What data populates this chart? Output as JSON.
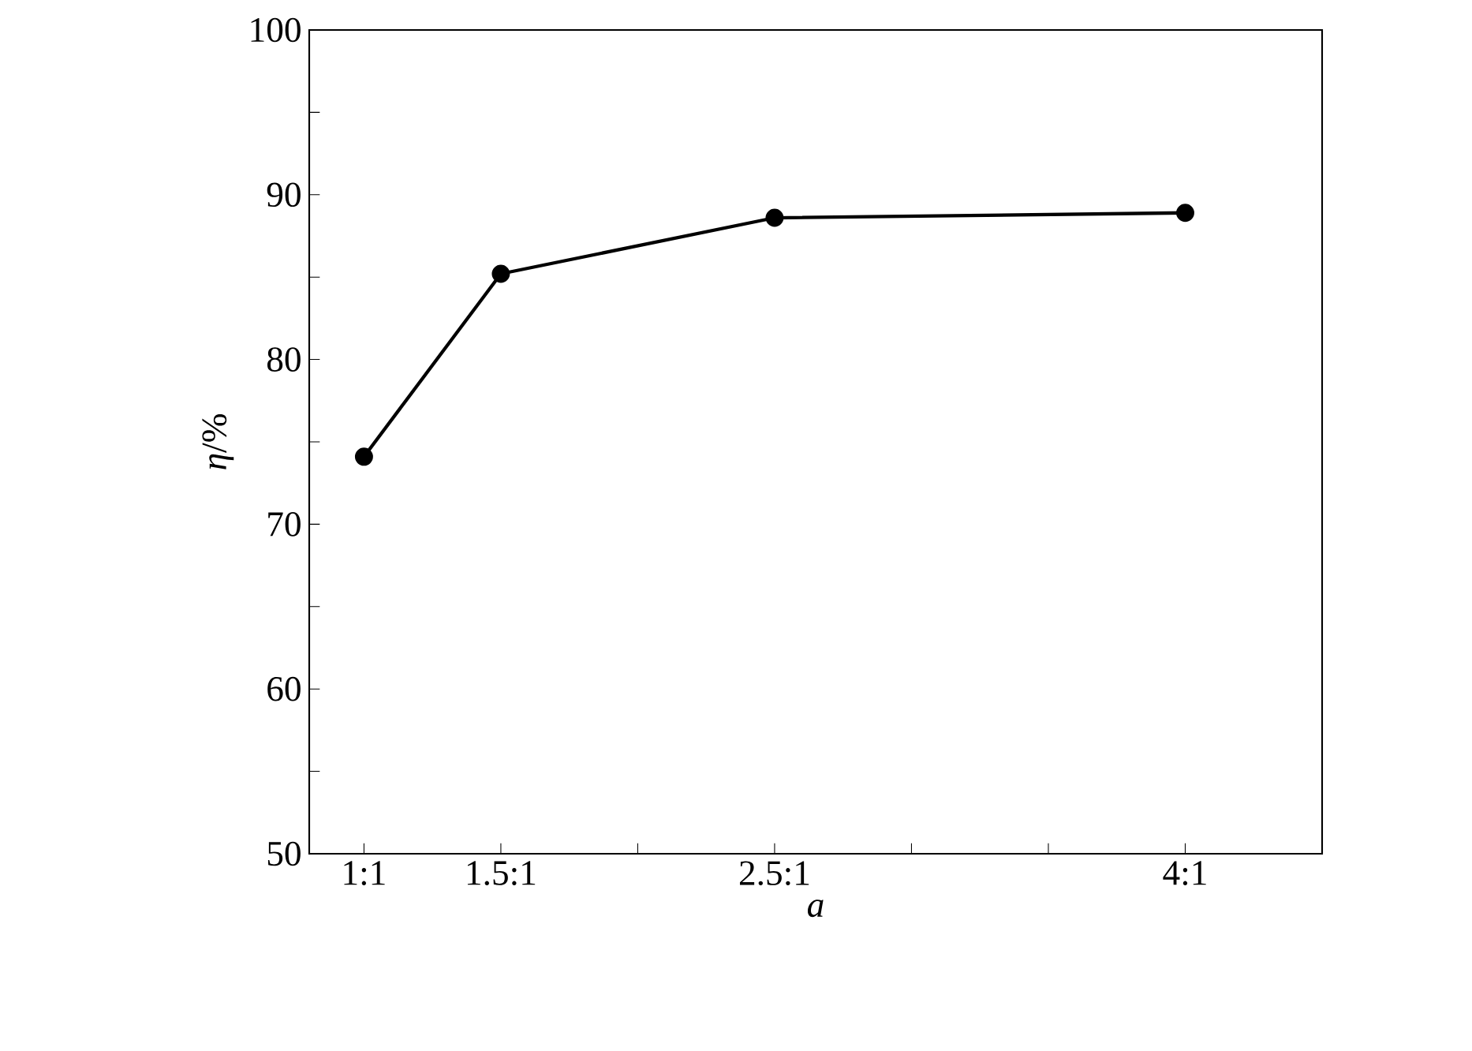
{
  "chart_data": {
    "type": "line",
    "xlabel": "*a*",
    "ylabel": "*η*/%",
    "categories": [
      "1:1",
      "1.5:1",
      null,
      "2.5:1",
      null,
      null,
      "4:1",
      null
    ],
    "series": [
      {
        "color": "#000000",
        "values": [
          74.1,
          85.2,
          null,
          88.6,
          null,
          null,
          88.9,
          null
        ]
      }
    ],
    "ylim": [
      50,
      100
    ],
    "yticks": [
      50,
      {
        "value": 55,
        "label": null
      },
      60,
      {
        "value": 65,
        "label": null
      },
      70,
      {
        "value": 75,
        "label": null
      },
      80,
      {
        "value": 85,
        "label": null
      },
      90,
      {
        "value": 95,
        "label": null
      },
      100
    ],
    "grid": false,
    "marker": "circle",
    "line_style": "solid"
  }
}
